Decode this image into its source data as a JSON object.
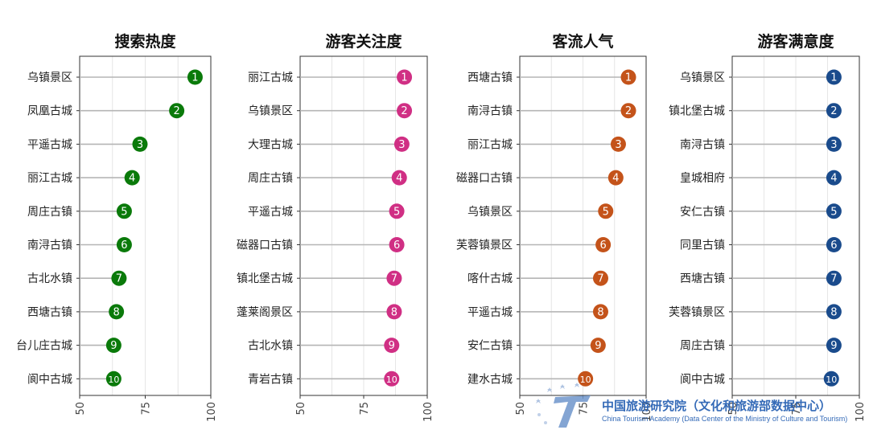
{
  "chart_data": [
    {
      "type": "lollipop",
      "title": "搜索热度",
      "color": "#0a7a0a",
      "xlim": [
        50,
        100
      ],
      "xticks": [
        50,
        75,
        100
      ],
      "grid": true,
      "categories": [
        "乌镇景区",
        "凤凰古城",
        "平遥古城",
        "丽江古城",
        "周庄古镇",
        "南浔古镇",
        "古北水镇",
        "西塘古镇",
        "台儿庄古城",
        "阆中古城"
      ],
      "ranks": [
        "1",
        "2",
        "3",
        "4",
        "5",
        "6",
        "7",
        "8",
        "9",
        "10"
      ],
      "values": [
        94,
        87,
        73,
        70,
        67,
        67,
        65,
        64,
        63,
        63
      ]
    },
    {
      "type": "lollipop",
      "title": "游客关注度",
      "color": "#d02f84",
      "xlim": [
        50,
        100
      ],
      "xticks": [
        50,
        75,
        100
      ],
      "grid": true,
      "categories": [
        "丽江古城",
        "乌镇景区",
        "大理古城",
        "周庄古镇",
        "平遥古城",
        "磁器口古镇",
        "镇北堡古城",
        "蓬莱阁景区",
        "古北水镇",
        "青岩古镇"
      ],
      "ranks": [
        "1",
        "2",
        "3",
        "4",
        "5",
        "6",
        "7",
        "8",
        "9",
        "10"
      ],
      "values": [
        91,
        91,
        90,
        89,
        88,
        88,
        87,
        87,
        86,
        86
      ]
    },
    {
      "type": "lollipop",
      "title": "客流人气",
      "color": "#c4531a",
      "xlim": [
        50,
        100
      ],
      "xticks": [
        50,
        75,
        100
      ],
      "grid": true,
      "categories": [
        "西塘古镇",
        "南浔古镇",
        "丽江古城",
        "磁器口古镇",
        "乌镇景区",
        "芙蓉镇景区",
        "喀什古城",
        "平遥古城",
        "安仁古镇",
        "建水古城"
      ],
      "ranks": [
        "1",
        "2",
        "3",
        "4",
        "5",
        "6",
        "7",
        "8",
        "9",
        "10"
      ],
      "values": [
        93,
        93,
        89,
        88,
        84,
        83,
        82,
        82,
        81,
        76
      ]
    },
    {
      "type": "lollipop",
      "title": "游客满意度",
      "color": "#1a4b8c",
      "xlim": [
        50,
        100
      ],
      "xticks": [
        50,
        75,
        100
      ],
      "grid": true,
      "categories": [
        "乌镇景区",
        "镇北堡古城",
        "南浔古镇",
        "皇城相府",
        "安仁古镇",
        "同里古镇",
        "西塘古镇",
        "芙蓉镇景区",
        "周庄古镇",
        "阆中古城"
      ],
      "ranks": [
        "1",
        "2",
        "3",
        "4",
        "5",
        "6",
        "7",
        "8",
        "9",
        "10"
      ],
      "values": [
        90,
        90,
        90,
        90,
        90,
        90,
        90,
        90,
        90,
        89
      ]
    }
  ],
  "watermark": {
    "cn": "中国旅游研究院（文化和旅游部数据中心）",
    "en": "China Tourism Academy (Data Center of the Ministry of Culture and Tourism)"
  }
}
